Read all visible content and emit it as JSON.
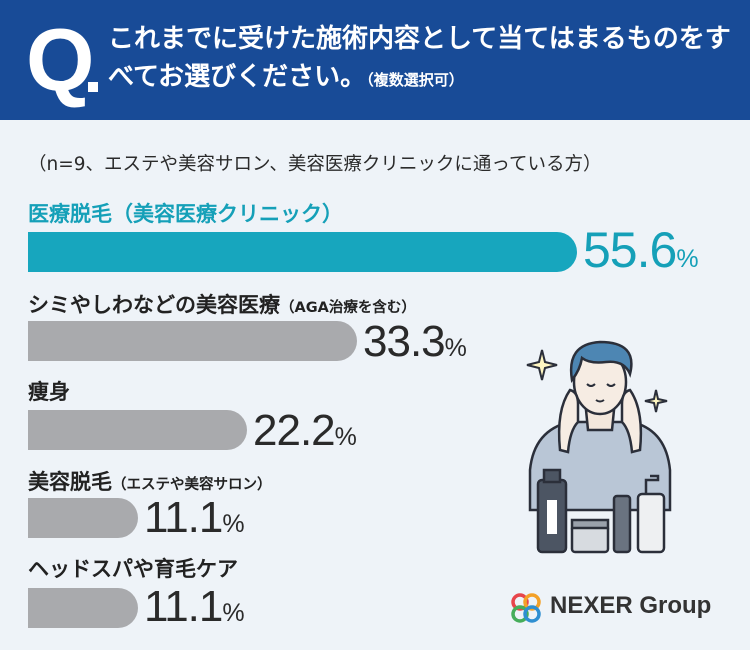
{
  "header": {
    "q_letter": "Q",
    "question": "これまでに受けた施術内容として当てはまるものをすべてお選びください。",
    "note": "（複数選択可）"
  },
  "sample_note": "（n=9、エステや美容サロン、美容医療クリニックに通っている方）",
  "chart_data": {
    "type": "bar",
    "orientation": "horizontal",
    "categories": [
      "医療脱毛（美容医療クリニック）",
      "シミやしわなどの美容医療（AGA治療を含む）",
      "痩身",
      "美容脱毛（エステや美容サロン）",
      "ヘッドスパや育毛ケア"
    ],
    "values": [
      55.6,
      33.3,
      22.2,
      11.1,
      11.1
    ],
    "unit": "%",
    "xlim": [
      0,
      100
    ],
    "highlight_color": "#17a6be",
    "bar_color": "#a9aaad"
  },
  "bars": [
    {
      "label": "医療脱毛（美容医療クリニック）",
      "label_sub": "",
      "value": "55.6",
      "unit": "%"
    },
    {
      "label": "シミやしわなどの美容医療",
      "label_sub": "（AGA治療を含む）",
      "value": "33.3",
      "unit": "%"
    },
    {
      "label": "痩身",
      "label_sub": "",
      "value": "22.2",
      "unit": "%"
    },
    {
      "label": "美容脱毛",
      "label_sub": "（エステや美容サロン）",
      "value": "11.1",
      "unit": "%"
    },
    {
      "label": "ヘッドスパや育毛ケア",
      "label_sub": "",
      "value": "11.1",
      "unit": "%"
    }
  ],
  "logo": {
    "text": "NEXER Group"
  },
  "colors": {
    "header_bg": "#184b97",
    "accent": "#17a6be",
    "background": "#eef3f8"
  }
}
